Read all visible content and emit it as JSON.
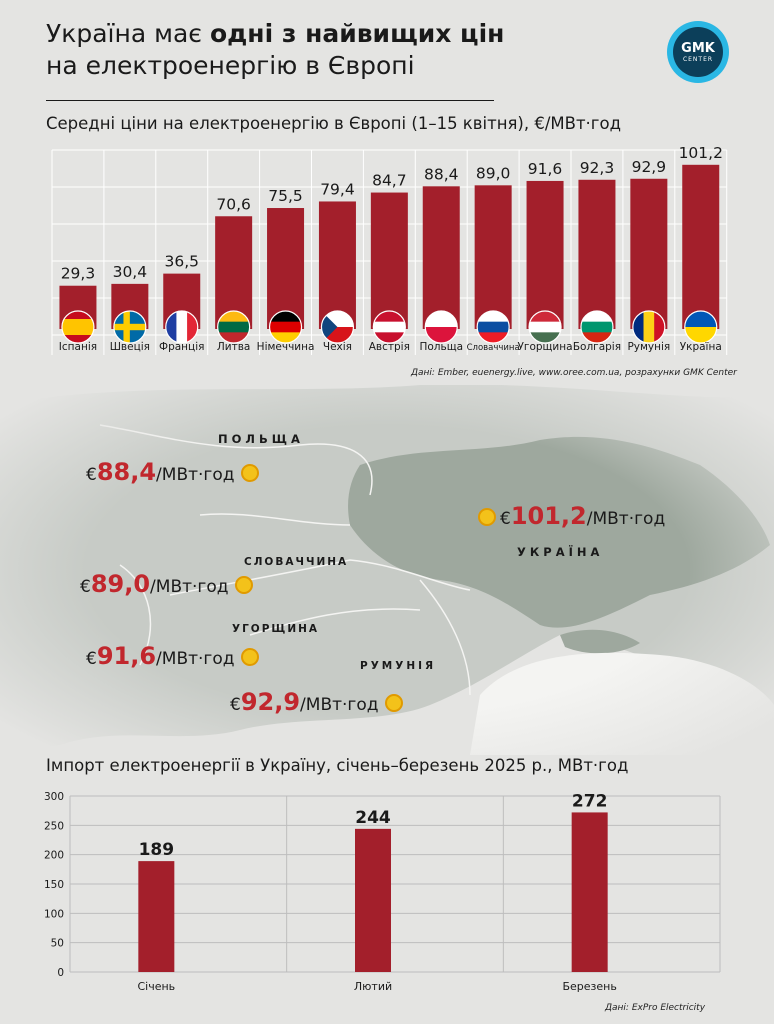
{
  "header": {
    "title_line1_pre": "Україна має ",
    "title_line1_bold": "одні з найвищих цін",
    "title_line2": "на електроенергію в Європі",
    "logo_top": "GMK",
    "logo_bottom": "CENTER"
  },
  "price_chart": {
    "subtitle": "Середні ціни на електроенергію в Європі (1–15 квітня), €/МВт·год",
    "source": "Дані: Ember, euenergy.live, www.oree.com.ua, розрахунки GMK Center"
  },
  "map": {
    "labels": {
      "poland": "ПОЛЬЩА",
      "slovakia": "СЛОВАЧЧИНА",
      "hungary": "УГОРЩИНА",
      "romania": "РУМУНІЯ",
      "ukraine": "УКРАЇНА"
    },
    "callouts": {
      "poland": {
        "currency": "€",
        "value": "88,4",
        "unit": "/МВт·год"
      },
      "ukraine": {
        "currency": "€",
        "value": "101,2",
        "unit": "/МВт·год"
      },
      "slovakia": {
        "currency": "€",
        "value": "89,0",
        "unit": "/МВт·год"
      },
      "hungary": {
        "currency": "€",
        "value": "91,6",
        "unit": "/МВт·год"
      },
      "romania": {
        "currency": "€",
        "value": "92,9",
        "unit": "/МВт·год"
      }
    },
    "colors": {
      "map_land": "#c9cdc8",
      "ukraine_land": "#9fa89f",
      "accent": "#c1272d"
    }
  },
  "import_chart": {
    "title": "Імпорт електроенергії в Україну, січень–березень 2025 р., МВт·год",
    "source": "Дані:  ExPro Electricity"
  },
  "chart_data": [
    {
      "type": "bar",
      "title": "Середні ціни на електроенергію в Європі (1–15 квітня), €/МВт·год",
      "categories": [
        "Іспанія",
        "Швеція",
        "Франція",
        "Литва",
        "Німеччина",
        "Чехія",
        "Австрія",
        "Польща",
        "Словаччина",
        "Угорщина",
        "Болгарія",
        "Румунія",
        "Україна"
      ],
      "values": [
        29.3,
        30.4,
        36.5,
        70.6,
        75.5,
        79.4,
        84.7,
        88.4,
        89.0,
        91.6,
        92.3,
        92.9,
        101.2
      ],
      "value_labels": [
        "29,3",
        "30,4",
        "36,5",
        "70,6",
        "75,5",
        "79,4",
        "84,7",
        "88,4",
        "89,0",
        "91,6",
        "92,3",
        "92,9",
        "101,2"
      ],
      "flags": [
        "spain-flag",
        "sweden-flag",
        "france-flag",
        "lithuania-flag",
        "germany-flag",
        "czechia-flag",
        "austria-flag",
        "poland-flag",
        "slovakia-flag",
        "hungary-flag",
        "bulgaria-flag",
        "romania-flag",
        "ukraine-flag"
      ],
      "ylim": [
        0,
        110
      ],
      "grid": true,
      "bar_color": "#a31f2b"
    },
    {
      "type": "bar",
      "title": "Імпорт електроенергії в Україну, січень–березень 2025 р., МВт·год",
      "categories": [
        "Січень",
        "Лютий",
        "Березень"
      ],
      "values": [
        189,
        244,
        272
      ],
      "ylim": [
        0,
        300
      ],
      "yticks": [
        0,
        50,
        100,
        150,
        200,
        250,
        300
      ],
      "grid": true,
      "bar_color": "#a31f2b"
    }
  ]
}
